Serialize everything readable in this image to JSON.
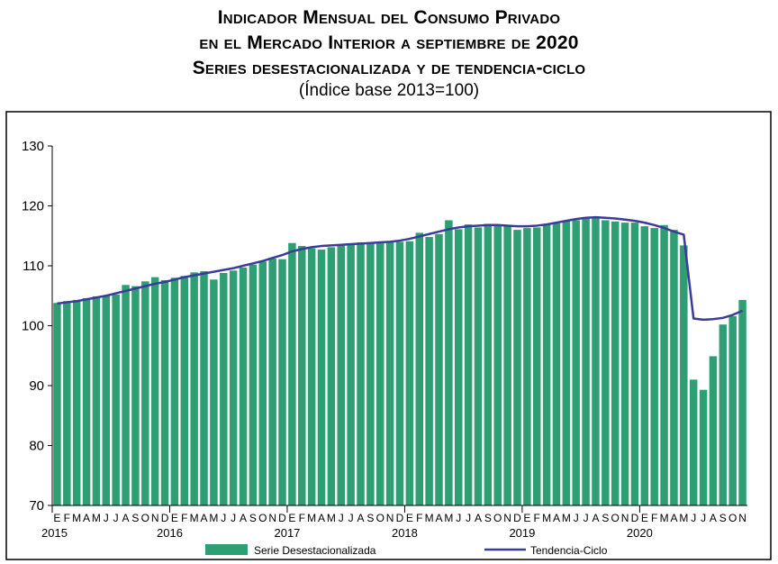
{
  "chart_data": {
    "type": "bar",
    "title_lines": [
      "Indicador Mensual del Consumo Privado",
      "en el Mercado Interior a septiembre de 2020",
      "Series desestacionalizada y de tendencia-ciclo"
    ],
    "subtitle": "(Índice base 2013=100)",
    "ylim": [
      70,
      130
    ],
    "yticks": [
      70,
      80,
      90,
      100,
      110,
      120,
      130
    ],
    "month_labels": [
      "E",
      "F",
      "M",
      "A",
      "M",
      "J",
      "J",
      "A",
      "S",
      "O",
      "N",
      "D"
    ],
    "years": [
      "2015",
      "2016",
      "2017",
      "2018",
      "2019",
      "2020"
    ],
    "grid": false,
    "legend_position": "bottom",
    "series": [
      {
        "name": "Serie Desestacionalizada",
        "kind": "bar",
        "color": "#2e9e73",
        "values": [
          103.8,
          104.1,
          104.3,
          104.6,
          104.9,
          105.0,
          105.2,
          106.8,
          106.6,
          107.4,
          108.1,
          107.6,
          108.0,
          108.3,
          108.9,
          109.1,
          107.7,
          108.8,
          109.2,
          109.7,
          110.2,
          110.7,
          111.2,
          111.1,
          113.8,
          113.3,
          112.9,
          112.7,
          113.1,
          113.4,
          113.7,
          113.9,
          113.7,
          113.8,
          113.9,
          114.0,
          114.1,
          115.5,
          114.8,
          115.3,
          117.6,
          116.1,
          116.9,
          116.4,
          117.0,
          116.9,
          116.7,
          116.0,
          116.3,
          116.4,
          116.9,
          117.1,
          117.5,
          117.6,
          117.9,
          118.0,
          117.6,
          117.4,
          117.2,
          117.2,
          116.6,
          116.3,
          116.8,
          116.0,
          113.4,
          91.0,
          89.3,
          94.9,
          100.2,
          101.6,
          104.3
        ]
      },
      {
        "name": "Tendencia-Ciclo",
        "kind": "line",
        "color": "#3b3b9c",
        "values": [
          103.7,
          103.9,
          104.1,
          104.4,
          104.7,
          105.0,
          105.4,
          105.8,
          106.2,
          106.6,
          107.0,
          107.3,
          107.7,
          108.1,
          108.4,
          108.7,
          109.0,
          109.3,
          109.6,
          110.0,
          110.4,
          110.8,
          111.3,
          111.8,
          112.4,
          112.8,
          113.1,
          113.3,
          113.4,
          113.5,
          113.6,
          113.7,
          113.8,
          113.9,
          114.0,
          114.2,
          114.5,
          114.9,
          115.3,
          115.7,
          116.1,
          116.4,
          116.6,
          116.7,
          116.8,
          116.8,
          116.7,
          116.6,
          116.6,
          116.7,
          116.9,
          117.2,
          117.5,
          117.8,
          118.0,
          118.1,
          118.0,
          117.9,
          117.7,
          117.5,
          117.2,
          116.8,
          116.3,
          115.7,
          115.2,
          101.2,
          101.0,
          101.1,
          101.3,
          101.8,
          102.5
        ]
      }
    ]
  }
}
